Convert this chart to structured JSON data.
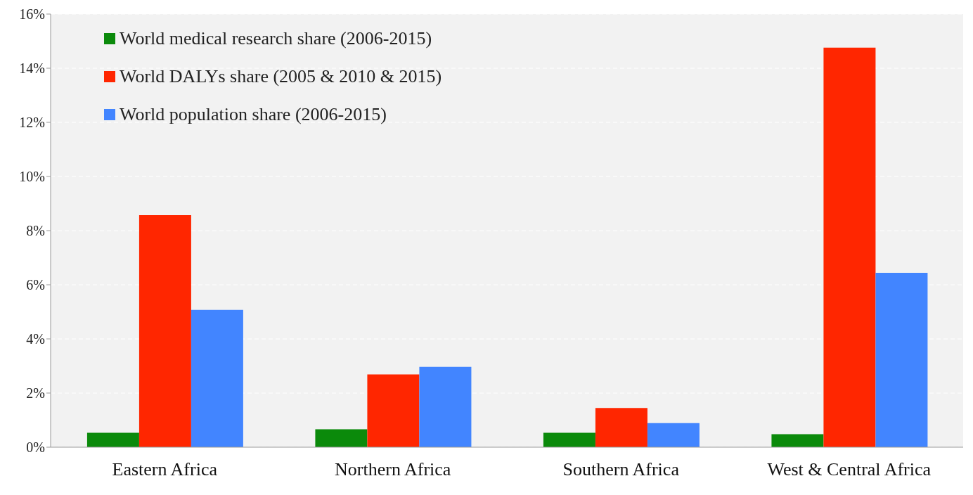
{
  "chart_data": {
    "type": "bar",
    "categories": [
      "Eastern Africa",
      "Northern Africa",
      "Southern Africa",
      "West & Central Africa"
    ],
    "series": [
      {
        "name": "World medical research share (2006-2015)",
        "color": "#0b8a0b",
        "values": [
          0.53,
          0.66,
          0.53,
          0.48
        ]
      },
      {
        "name": "World DALYs share (2005 & 2010 & 2015)",
        "color": "#ff2600",
        "values": [
          8.57,
          2.69,
          1.45,
          14.76
        ]
      },
      {
        "name": "World population share (2006-2015)",
        "color": "#4285ff",
        "values": [
          5.07,
          2.97,
          0.89,
          6.44
        ]
      }
    ],
    "ylim": [
      0,
      16
    ],
    "yticks": [
      {
        "value": 0,
        "label": "0%"
      },
      {
        "value": 2,
        "label": "2%"
      },
      {
        "value": 4,
        "label": "4%"
      },
      {
        "value": 6,
        "label": "6%"
      },
      {
        "value": 8,
        "label": "8%"
      },
      {
        "value": 10,
        "label": "10%"
      },
      {
        "value": 12,
        "label": "12%"
      },
      {
        "value": 14,
        "label": "14%"
      },
      {
        "value": 16,
        "label": "16%"
      }
    ],
    "grid": "y",
    "legend": "top left"
  }
}
